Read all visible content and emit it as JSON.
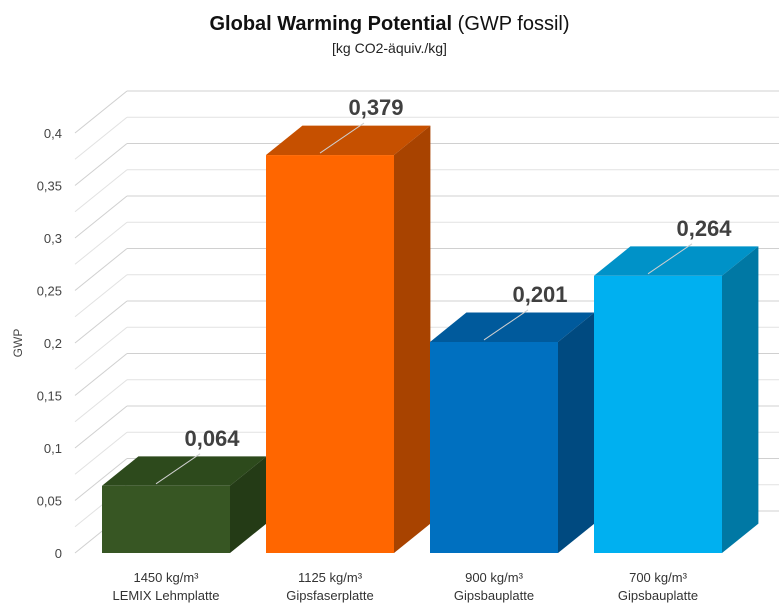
{
  "chart_data": {
    "type": "bar",
    "title_bold": "Global Warming Potential",
    "title_rest": "(GWP fossil)",
    "subtitle": "[kg CO2-äquiv./kg]",
    "ylabel": "GWP",
    "xlabel": "",
    "ylim": [
      0,
      0.4
    ],
    "yticks": [
      "0",
      "0,05",
      "0,1",
      "0,15",
      "0,2",
      "0,25",
      "0,3",
      "0,35",
      "0,4"
    ],
    "grid": true,
    "legend": "none",
    "categories": [
      [
        "1450 kg/m³",
        "LEMIX Lehmplatte"
      ],
      [
        "1125 kg/m³",
        "Gipsfaserplatte"
      ],
      [
        "900 kg/m³",
        "Gipsbauplatte"
      ],
      [
        "700 kg/m³",
        "Gipsbauplatte"
      ]
    ],
    "values": [
      0.064,
      0.379,
      0.201,
      0.264
    ],
    "data_labels": [
      "0,064",
      "0,379",
      "0,201",
      "0,264"
    ],
    "colors": [
      {
        "front": "#375623",
        "top": "#2d4a1c",
        "side": "#243b16"
      },
      {
        "front": "#ff6600",
        "top": "#c65000",
        "side": "#a84300"
      },
      {
        "front": "#0070c0",
        "top": "#005a9c",
        "side": "#004a80"
      },
      {
        "front": "#00b0f0",
        "top": "#0092c8",
        "side": "#0078a4"
      }
    ]
  }
}
